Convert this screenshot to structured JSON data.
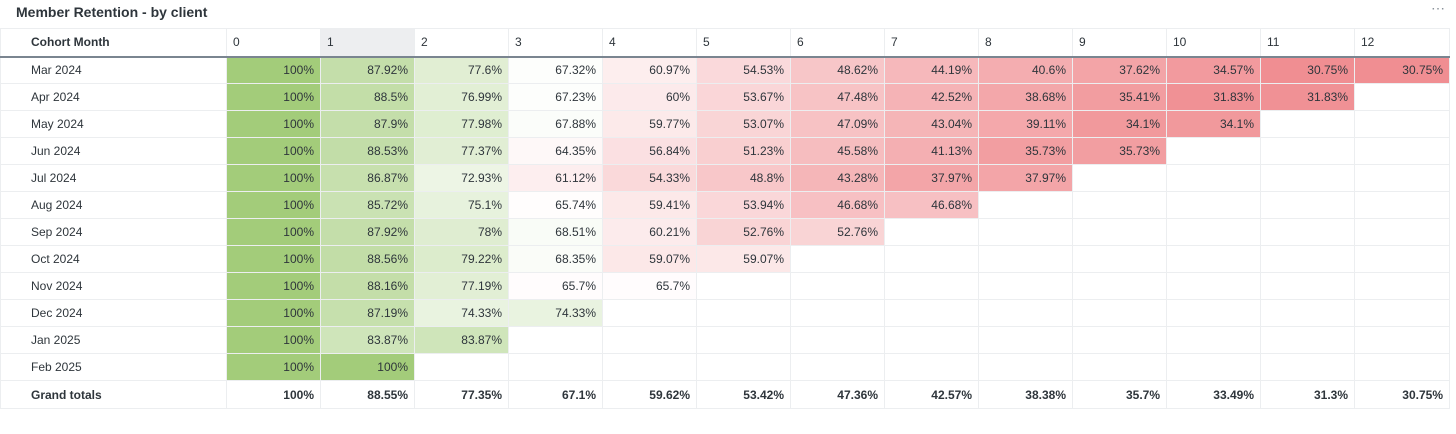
{
  "title": "Member Retention - by client",
  "more_icon": "⋯",
  "corner_header": "Cohort Month",
  "columns": [
    "0",
    "1",
    "2",
    "3",
    "4",
    "5",
    "6",
    "7",
    "8",
    "9",
    "10",
    "11",
    "12"
  ],
  "selected_column": 1,
  "colors": {
    "high": "#a3cc7a",
    "neutral": "#ffffff",
    "low": "#f08e92"
  },
  "rows": [
    {
      "label": "Mar 2024",
      "values": [
        "100%",
        "87.92%",
        "77.6%",
        "67.32%",
        "60.97%",
        "54.53%",
        "48.62%",
        "44.19%",
        "40.6%",
        "37.62%",
        "34.57%",
        "30.75%",
        "30.75%"
      ]
    },
    {
      "label": "Apr 2024",
      "values": [
        "100%",
        "88.5%",
        "76.99%",
        "67.23%",
        "60%",
        "53.67%",
        "47.48%",
        "42.52%",
        "38.68%",
        "35.41%",
        "31.83%",
        "31.83%"
      ]
    },
    {
      "label": "May 2024",
      "values": [
        "100%",
        "87.9%",
        "77.98%",
        "67.88%",
        "59.77%",
        "53.07%",
        "47.09%",
        "43.04%",
        "39.11%",
        "34.1%",
        "34.1%"
      ]
    },
    {
      "label": "Jun 2024",
      "values": [
        "100%",
        "88.53%",
        "77.37%",
        "64.35%",
        "56.84%",
        "51.23%",
        "45.58%",
        "41.13%",
        "35.73%",
        "35.73%"
      ]
    },
    {
      "label": "Jul 2024",
      "values": [
        "100%",
        "86.87%",
        "72.93%",
        "61.12%",
        "54.33%",
        "48.8%",
        "43.28%",
        "37.97%",
        "37.97%"
      ]
    },
    {
      "label": "Aug 2024",
      "values": [
        "100%",
        "85.72%",
        "75.1%",
        "65.74%",
        "59.41%",
        "53.94%",
        "46.68%",
        "46.68%"
      ]
    },
    {
      "label": "Sep 2024",
      "values": [
        "100%",
        "87.92%",
        "78%",
        "68.51%",
        "60.21%",
        "52.76%",
        "52.76%"
      ]
    },
    {
      "label": "Oct 2024",
      "values": [
        "100%",
        "88.56%",
        "79.22%",
        "68.35%",
        "59.07%",
        "59.07%"
      ]
    },
    {
      "label": "Nov 2024",
      "values": [
        "100%",
        "88.16%",
        "77.19%",
        "65.7%",
        "65.7%"
      ]
    },
    {
      "label": "Dec 2024",
      "values": [
        "100%",
        "87.19%",
        "74.33%",
        "74.33%"
      ]
    },
    {
      "label": "Jan 2025",
      "values": [
        "100%",
        "83.87%",
        "83.87%"
      ]
    },
    {
      "label": "Feb 2025",
      "values": [
        "100%",
        "100%"
      ]
    }
  ],
  "totals": {
    "label": "Grand totals",
    "values": [
      "100%",
      "88.55%",
      "77.35%",
      "67.1%",
      "59.62%",
      "53.42%",
      "47.36%",
      "42.57%",
      "38.38%",
      "35.7%",
      "33.49%",
      "31.3%",
      "30.75%"
    ]
  }
}
